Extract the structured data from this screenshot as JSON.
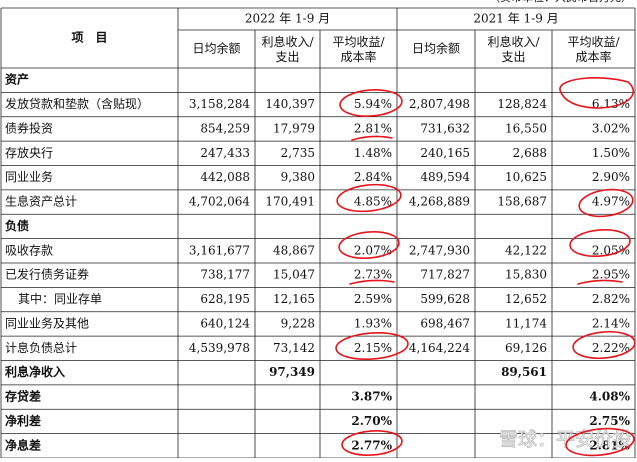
{
  "header": {
    "note": "（货币单位：人民币百万元）",
    "item": "项　目",
    "periods": [
      "2022 年 1-9 月",
      "2021 年 1-9 月"
    ],
    "columns": [
      "日均余额",
      "利息收入/\n支出",
      "平均收益/\n成本率",
      "日均余额",
      "利息收入/\n支出",
      "平均收益/\n成本率"
    ]
  },
  "table": {
    "rows": [
      {
        "label": "资产",
        "bold": true
      },
      {
        "label": "发放贷款和垫款（含贴现）",
        "cells": {
          "1": "3,158,284",
          "2": "140,397",
          "3": "5.94%",
          "4": "2,807,498",
          "5": "128,824",
          "6": "6.13%"
        }
      },
      {
        "label": "债券投资",
        "cells": {
          "1": "854,259",
          "2": "17,979",
          "3": "2.81%",
          "4": "731,632",
          "5": "16,550",
          "6": "3.02%"
        }
      },
      {
        "label": "存放央行",
        "cells": {
          "1": "247,433",
          "2": "2,735",
          "3": "1.48%",
          "4": "240,165",
          "5": "2,688",
          "6": "1.50%"
        }
      },
      {
        "label": "同业业务",
        "cells": {
          "1": "442,088",
          "2": "9,380",
          "3": "2.84%",
          "4": "489,594",
          "5": "10,625",
          "6": "2.90%"
        }
      },
      {
        "label": "生息资产总计",
        "cells": {
          "1": "4,702,064",
          "2": "170,491",
          "3": "4.85%",
          "4": "4,268,889",
          "5": "158,687",
          "6": "4.97%"
        }
      },
      {
        "label": "负债",
        "bold": true
      },
      {
        "label": "吸收存款",
        "cells": {
          "1": "3,161,677",
          "2": "48,867",
          "3": "2.07%",
          "4": "2,747,930",
          "5": "42,122",
          "6": "2.05%"
        }
      },
      {
        "label": "已发行债务证券",
        "cells": {
          "1": "738,177",
          "2": "15,047",
          "3": "2.73%",
          "4": "717,827",
          "5": "15,830",
          "6": "2.95%"
        }
      },
      {
        "label": "其中：同业存单",
        "indent": true,
        "cells": {
          "1": "628,195",
          "2": "12,165",
          "3": "2.59%",
          "4": "599,628",
          "5": "12,652",
          "6": "2.82%"
        }
      },
      {
        "label": "同业业务及其他",
        "cells": {
          "1": "640,124",
          "2": "9,228",
          "3": "1.93%",
          "4": "698,467",
          "5": "11,174",
          "6": "2.14%"
        }
      },
      {
        "label": "计息负债总计",
        "cells": {
          "1": "4,539,978",
          "2": "73,142",
          "3": "2.15%",
          "4": "4,164,224",
          "5": "69,126",
          "6": "2.22%"
        }
      },
      {
        "label": "利息净收入",
        "bold": true,
        "cells": {
          "2": "97,349",
          "5": "89,561"
        }
      },
      {
        "label": "存贷差",
        "bold": true,
        "cells": {
          "3": "3.87%",
          "6": "4.08%"
        }
      },
      {
        "label": "净利差",
        "bold": true,
        "cells": {
          "3": "2.70%",
          "6": "2.75%"
        }
      },
      {
        "label": "净息差",
        "bold": true,
        "cells": {
          "3": "2.77%",
          "6": "2.81%"
        }
      }
    ]
  },
  "watermark": "雪球：平安价投"
}
